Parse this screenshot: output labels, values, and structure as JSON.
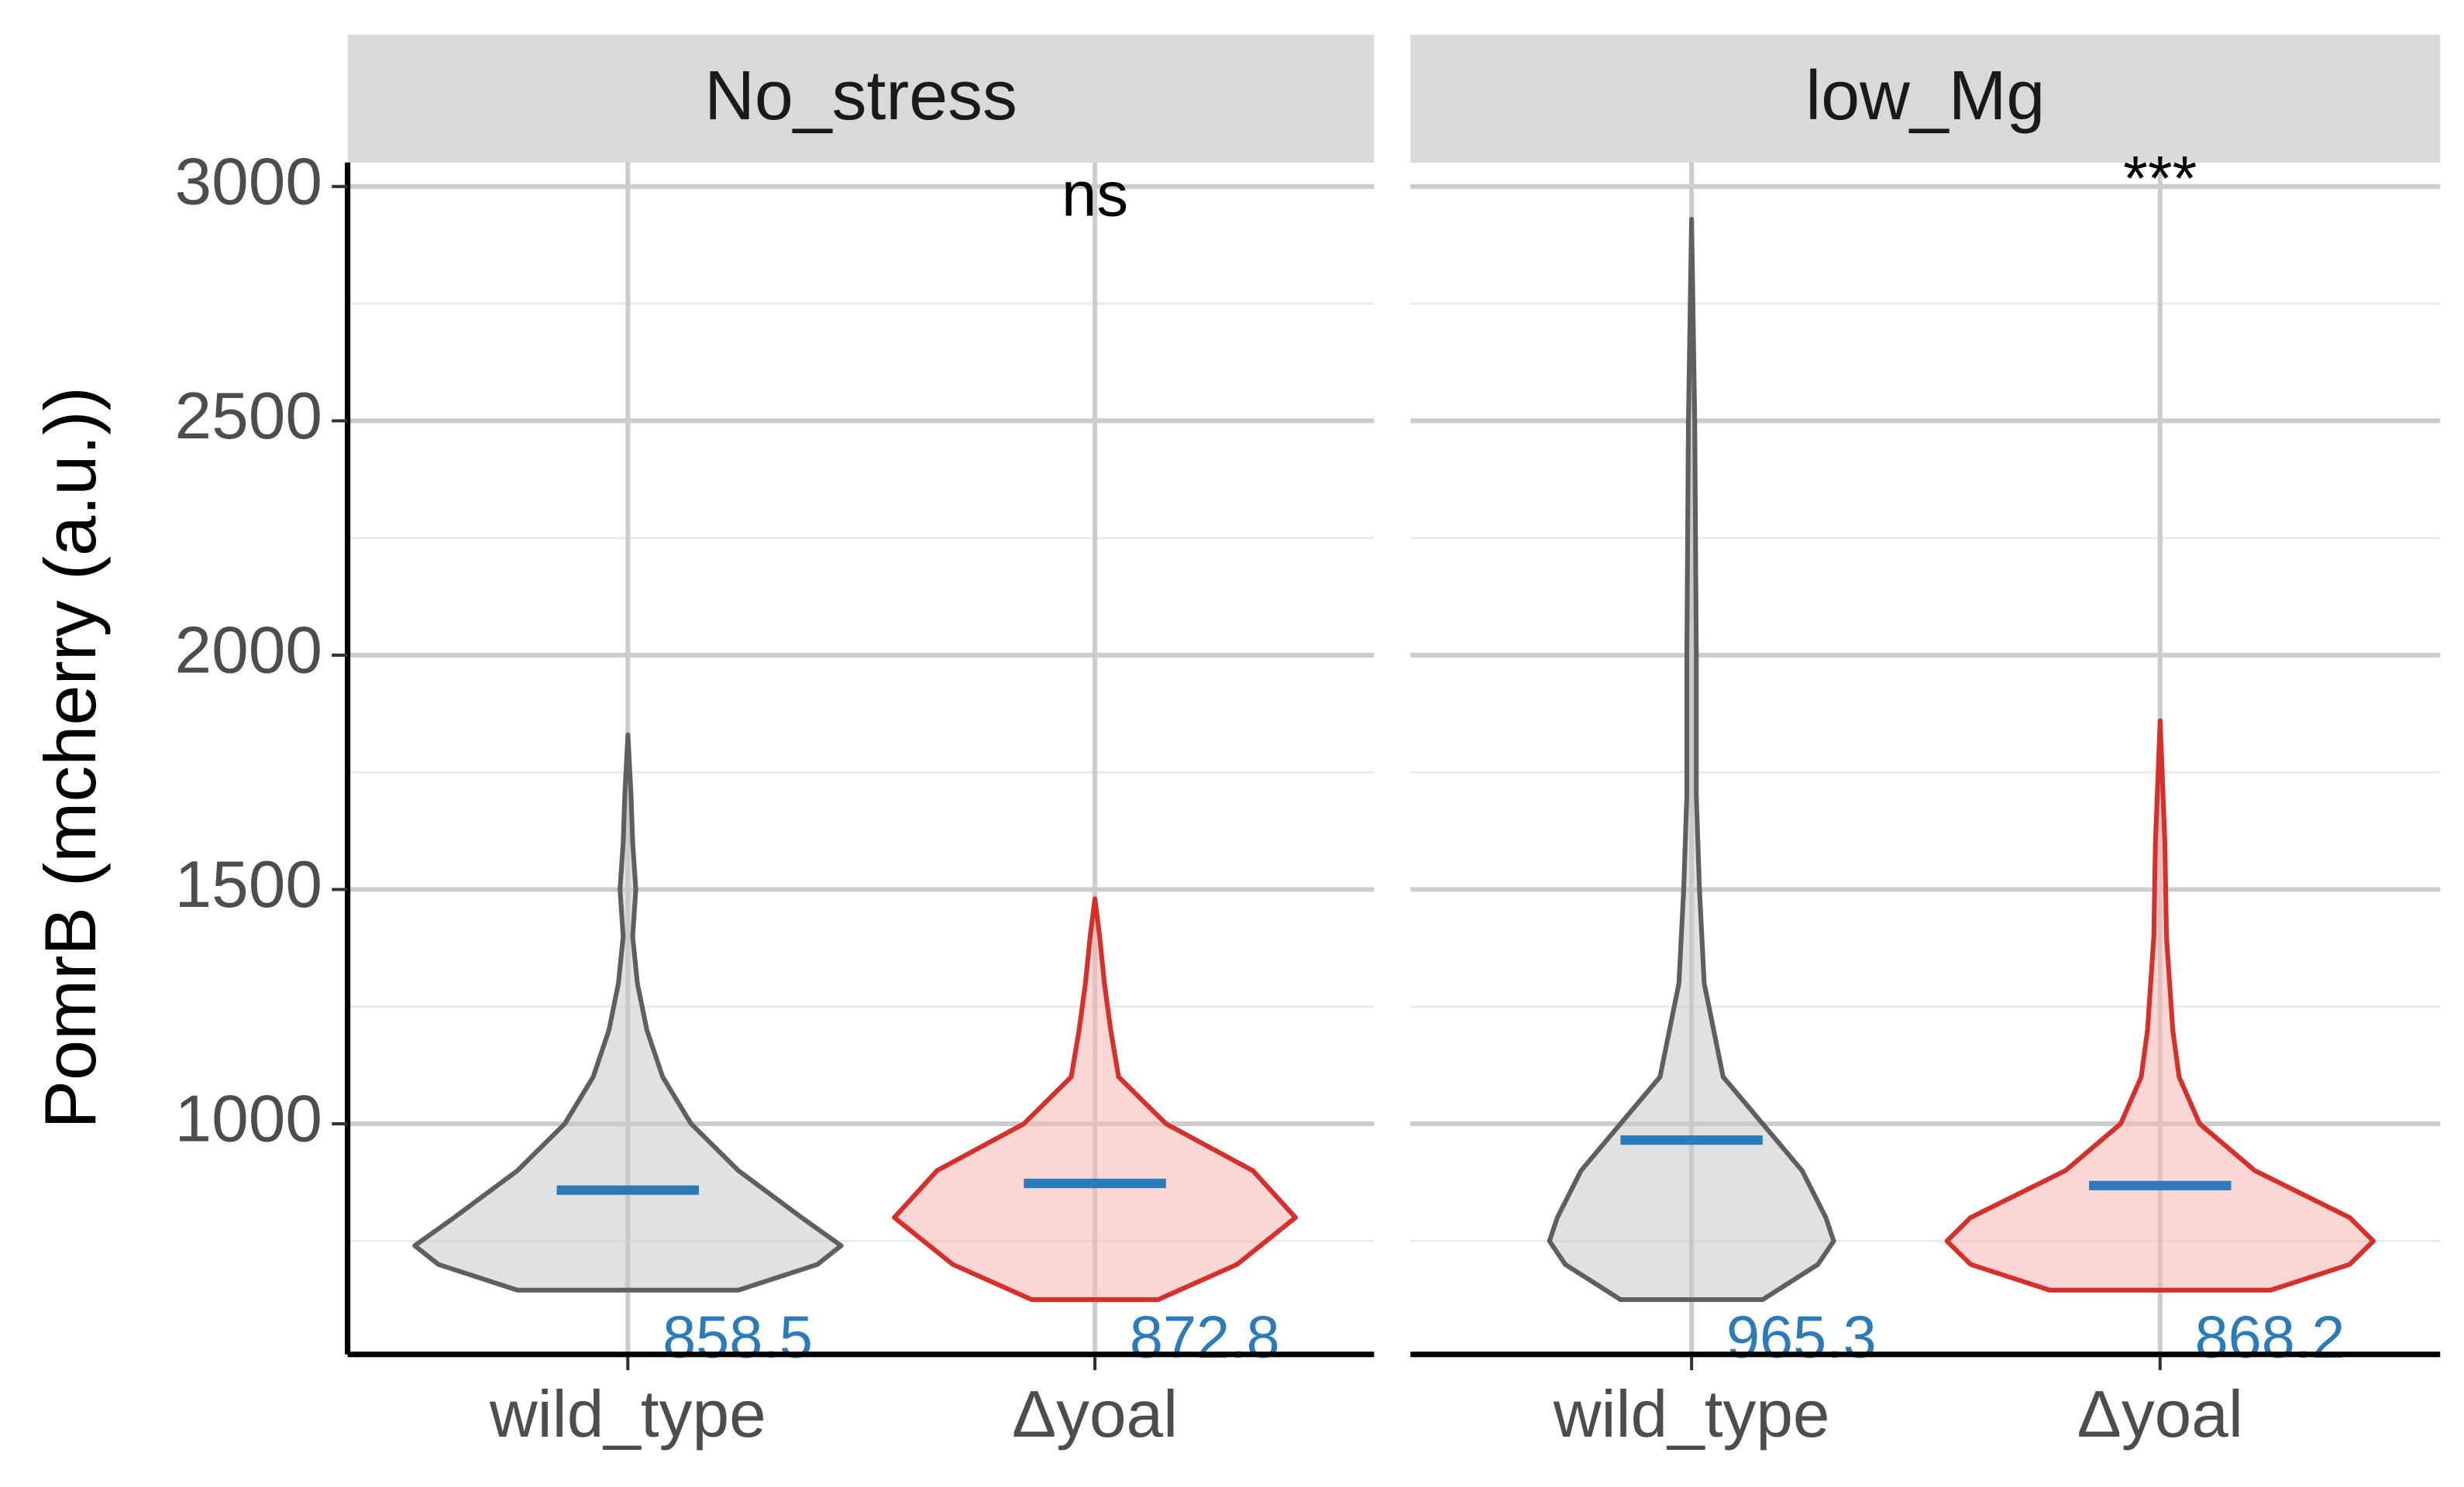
{
  "chart_data": {
    "type": "violin",
    "y_label": "PomrB (mcherry (a.u.))",
    "ylim": [
      508,
      3051
    ],
    "yticks": [
      1000,
      1500,
      2000,
      2500,
      3000
    ],
    "minor_yticks": [
      750,
      1250,
      1750,
      2250,
      2750
    ],
    "grid": true,
    "median_color": "#2b7bba",
    "panels": [
      {
        "title": "No_stress",
        "annotation": "ns",
        "categories": [
          "wild_type",
          "Δyoal"
        ],
        "groups": [
          {
            "color": "#5f5f5f",
            "fill": "#c8c8c8",
            "median": 858.5,
            "violin": {
              "y": [
                645,
                700,
                740,
                800,
                900,
                1000,
                1100,
                1200,
                1300,
                1400,
                1500,
                1600,
                1700,
                1830
              ],
              "density": [
                70,
                120,
                135,
                110,
                70,
                40,
                22,
                12,
                6,
                3,
                5,
                3,
                2,
                0
              ]
            }
          },
          {
            "color": "#d7302a",
            "fill": "#f5b5b3",
            "median": 872.8,
            "violin": {
              "y": [
                625,
                700,
                800,
                900,
                1000,
                1100,
                1200,
                1300,
                1400,
                1480
              ],
              "density": [
                40,
                90,
                127,
                100,
                45,
                15,
                10,
                6,
                3,
                0
              ]
            }
          }
        ]
      },
      {
        "title": "low_Mg",
        "annotation": "***",
        "categories": [
          "wild_type",
          "Δyoal"
        ],
        "groups": [
          {
            "color": "#5f5f5f",
            "fill": "#c8c8c8",
            "median": 965.3,
            "violin": {
              "y": [
                625,
                700,
                750,
                800,
                900,
                1000,
                1100,
                1300,
                1500,
                1700,
                2000,
                2500,
                2930
              ],
              "density": [
                45,
                80,
                90,
                85,
                70,
                45,
                20,
                8,
                5,
                3,
                3,
                2,
                0
              ]
            }
          },
          {
            "color": "#d7302a",
            "fill": "#f5b5b3",
            "median": 868.2,
            "violin": {
              "y": [
                645,
                700,
                750,
                800,
                900,
                1000,
                1100,
                1200,
                1400,
                1600,
                1860
              ],
              "density": [
                70,
                120,
                135,
                120,
                60,
                25,
                12,
                8,
                4,
                3,
                0
              ]
            }
          }
        ]
      }
    ]
  }
}
